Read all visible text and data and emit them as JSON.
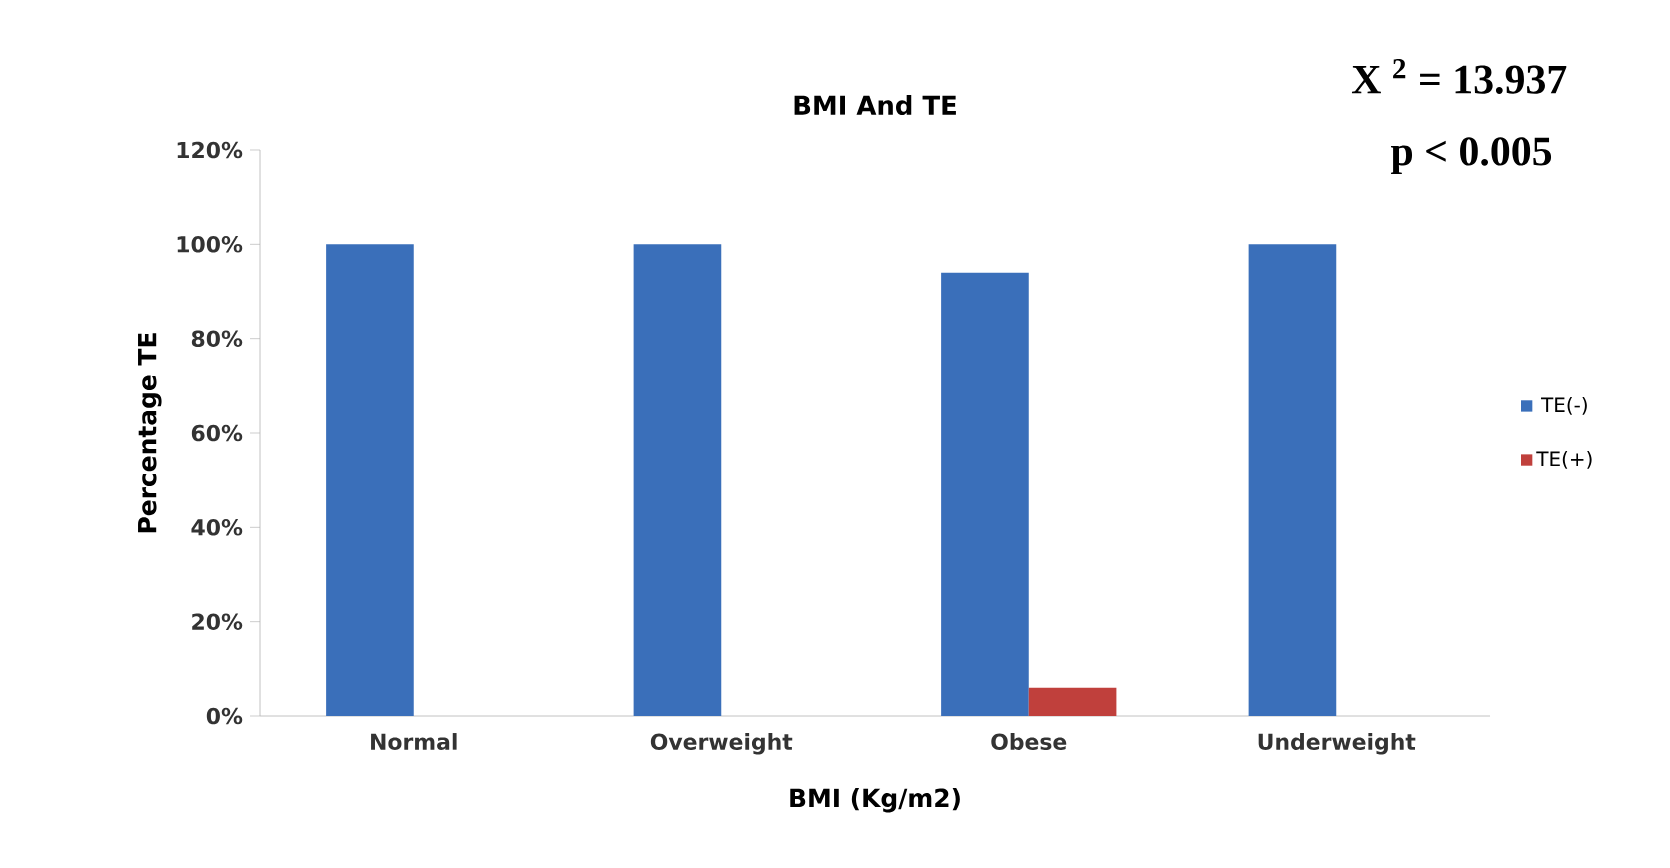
{
  "chart_data": {
    "type": "bar",
    "title": "BMI And TE",
    "xlabel": "BMI (Kg/m2)",
    "ylabel": "Percentage TE",
    "categories": [
      "Normal",
      "Overweight",
      "Obese",
      "Underweight"
    ],
    "series": [
      {
        "name": "TE(-)",
        "color": "#3a6fba",
        "values": [
          100,
          100,
          94,
          100
        ]
      },
      {
        "name": "TE(+)",
        "color": "#c0403c",
        "values": [
          0,
          0,
          6,
          0
        ]
      }
    ],
    "ylim": [
      0,
      120
    ],
    "yticks": [
      {
        "value": 0,
        "label": "0%"
      },
      {
        "value": 20,
        "label": "20%"
      },
      {
        "value": 40,
        "label": "40%"
      },
      {
        "value": 60,
        "label": "60%"
      },
      {
        "value": 80,
        "label": "80%"
      },
      {
        "value": 100,
        "label": "100%"
      },
      {
        "value": 120,
        "label": "120%"
      }
    ],
    "legend": "right",
    "grid": false,
    "annotations": [
      "X $^{2}$ = 13.937",
      "p < 0.005"
    ]
  }
}
